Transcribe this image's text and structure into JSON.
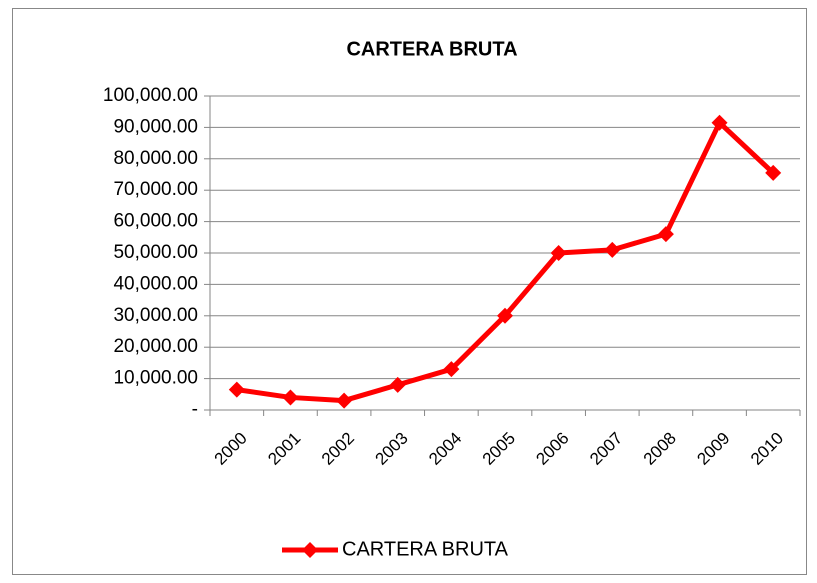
{
  "chart_data": {
    "type": "line",
    "title": "CARTERA BRUTA",
    "categories": [
      "2000",
      "2001",
      "2002",
      "2003",
      "2004",
      "2005",
      "2006",
      "2007",
      "2008",
      "2009",
      "2010"
    ],
    "series": [
      {
        "name": "CARTERA BRUTA",
        "color": "#ff0000",
        "values": [
          6500,
          4000,
          3000,
          8000,
          13000,
          30000,
          50000,
          51000,
          56000,
          91500,
          75500
        ]
      }
    ],
    "ylim": [
      0,
      100000
    ],
    "yticks": [
      {
        "value": 0,
        "label": "-"
      },
      {
        "value": 10000,
        "label": "10,000.00"
      },
      {
        "value": 20000,
        "label": "20,000.00"
      },
      {
        "value": 30000,
        "label": "30,000.00"
      },
      {
        "value": 40000,
        "label": "40,000.00"
      },
      {
        "value": 50000,
        "label": "50,000.00"
      },
      {
        "value": 60000,
        "label": "60,000.00"
      },
      {
        "value": 70000,
        "label": "70,000.00"
      },
      {
        "value": 80000,
        "label": "80,000.00"
      },
      {
        "value": 90000,
        "label": "90,000.00"
      },
      {
        "value": 100000,
        "label": "100,000.00"
      }
    ],
    "grid": true,
    "legend": "bottom"
  }
}
